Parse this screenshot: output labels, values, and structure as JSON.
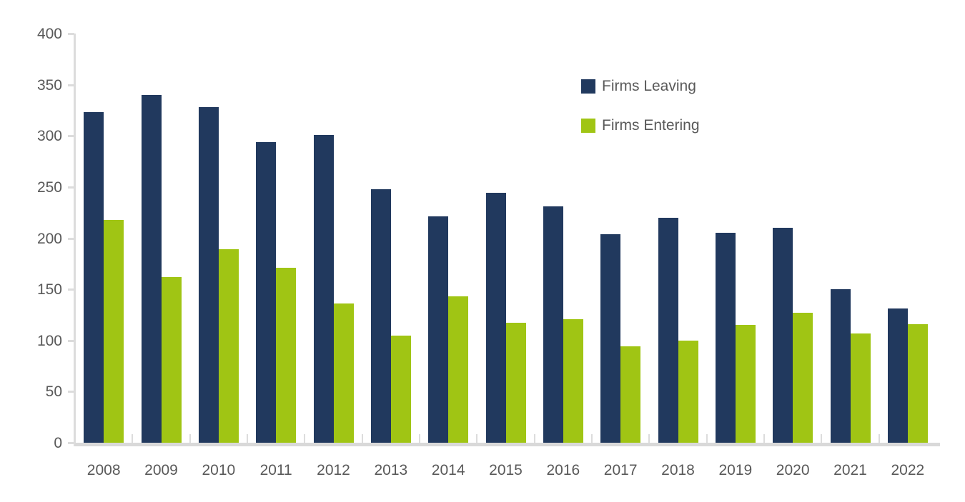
{
  "chart_data": {
    "type": "bar",
    "title": "",
    "xlabel": "",
    "ylabel": "",
    "categories": [
      "2008",
      "2009",
      "2010",
      "2011",
      "2012",
      "2013",
      "2014",
      "2015",
      "2016",
      "2017",
      "2018",
      "2019",
      "2020",
      "2021",
      "2022"
    ],
    "series": [
      {
        "name": "Firms Leaving",
        "color": "#21395E",
        "values": [
          323,
          340,
          328,
          294,
          301,
          248,
          221,
          244,
          231,
          204,
          220,
          205,
          210,
          150,
          131
        ]
      },
      {
        "name": "Firms Entering",
        "color": "#A0C514",
        "values": [
          218,
          162,
          189,
          171,
          136,
          105,
          143,
          117,
          121,
          94,
          100,
          115,
          127,
          107,
          116
        ]
      }
    ],
    "ylim": [
      0,
      400
    ],
    "yticks": [
      0,
      50,
      100,
      150,
      200,
      250,
      300,
      350,
      400
    ],
    "grid": false,
    "legend_position": "top-right",
    "axis_color": "#dcdcdc",
    "baseline_color": "#d9d9d9",
    "label_color": "#595959"
  }
}
